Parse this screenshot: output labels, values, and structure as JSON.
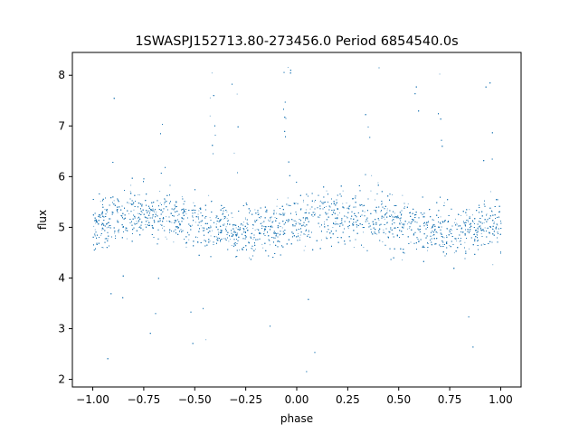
{
  "chart_data": {
    "type": "scatter",
    "title": "1SWASPJ152713.80-273456.0 Period 6854540.0s",
    "xlabel": "phase",
    "ylabel": "flux",
    "xlim": [
      -1.1,
      1.1
    ],
    "ylim": [
      1.85,
      8.45
    ],
    "x_ticks": [
      -1.0,
      -0.75,
      -0.5,
      -0.25,
      0.0,
      0.25,
      0.5,
      0.75,
      1.0
    ],
    "x_tick_labels": [
      "−1.00",
      "−0.75",
      "−0.50",
      "−0.25",
      "0.00",
      "0.25",
      "0.50",
      "0.75",
      "1.00"
    ],
    "y_ticks": [
      2,
      3,
      4,
      5,
      6,
      7,
      8
    ],
    "y_tick_labels": [
      "2",
      "3",
      "4",
      "5",
      "6",
      "7",
      "8"
    ],
    "grid": false,
    "marker_color": "#1f77b4",
    "series": [
      {
        "x_range": [
          -1.0,
          1.0
        ],
        "baseline_flux": 5.1,
        "typical_flux_range": [
          4.0,
          6.2
        ],
        "min_flux": 2.1,
        "max_flux": 8.2,
        "spikes_at_phase": [
          -0.65,
          -0.42,
          -0.3,
          -0.05,
          0.35,
          0.58,
          0.7,
          0.93,
          0.96
        ],
        "dips_at_phase": [
          -0.93,
          -0.85,
          -0.7,
          -0.45,
          -0.15,
          0.05,
          0.58,
          0.85
        ]
      }
    ]
  }
}
